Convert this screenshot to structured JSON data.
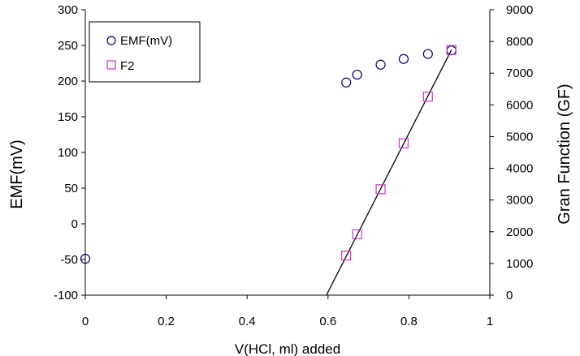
{
  "chart_data": {
    "type": "scatter",
    "xlabel": "V(HCl, ml) added",
    "ylabel": "EMF(mV)",
    "y2label": "Gran Function (GF)",
    "xlim": [
      0,
      1
    ],
    "ylim": [
      -100,
      300
    ],
    "y2lim": [
      0,
      9000
    ],
    "x_ticks": [
      0,
      0.2,
      0.4,
      0.6,
      0.8,
      1
    ],
    "x_tick_labels": [
      "0",
      "0.2",
      "0.4",
      "0.6",
      "0.8",
      "1"
    ],
    "y_ticks": [
      -100,
      -50,
      0,
      50,
      100,
      150,
      200,
      250,
      300
    ],
    "y_tick_labels": [
      "-100",
      "-50",
      "0",
      "50",
      "100",
      "150",
      "200",
      "250",
      "300"
    ],
    "y2_ticks": [
      0,
      1000,
      2000,
      3000,
      4000,
      5000,
      6000,
      7000,
      8000,
      9000
    ],
    "y2_tick_labels": [
      "0",
      "1000",
      "2000",
      "3000",
      "4000",
      "5000",
      "6000",
      "7000",
      "8000",
      "9000"
    ],
    "grid": false,
    "legend_position": "top-left",
    "series": [
      {
        "name": "EMF(mV)",
        "axis": "left",
        "marker": "circle",
        "color": "#000080",
        "x": [
          0,
          0.645,
          0.672,
          0.73,
          0.787,
          0.847,
          0.905
        ],
        "y": [
          -49,
          198,
          209,
          223,
          231,
          238,
          243
        ]
      },
      {
        "name": "F2",
        "axis": "right",
        "marker": "square",
        "color": "#cc33cc",
        "x": [
          0.645,
          0.672,
          0.73,
          0.787,
          0.847,
          0.905
        ],
        "y": [
          1250,
          1920,
          3340,
          4790,
          6260,
          7730
        ]
      }
    ],
    "trendline": {
      "axis": "right",
      "color": "#000000",
      "x": [
        0.596,
        0.905
      ],
      "y": [
        0,
        7730
      ]
    }
  }
}
